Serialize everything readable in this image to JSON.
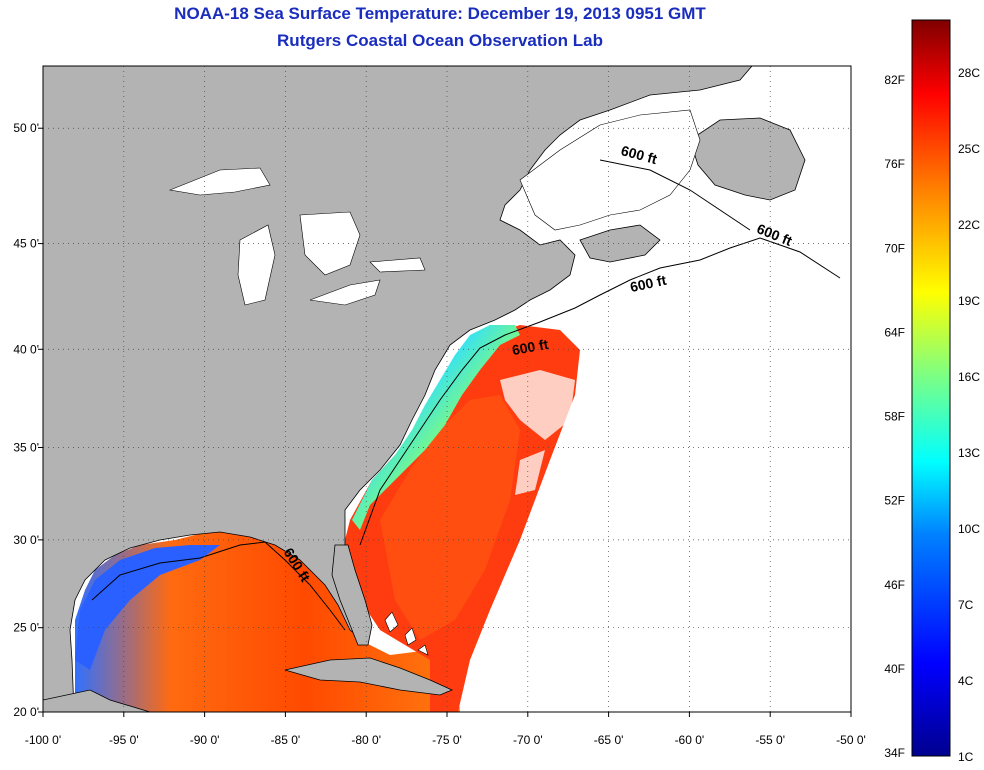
{
  "title": "NOAA-18 Sea Surface Temperature:  December 19, 2013 0951 GMT",
  "subtitle": "Rutgers Coastal Ocean Observation Lab",
  "map": {
    "lon_range": [
      -100,
      -50
    ],
    "lat_range": [
      20,
      52.5
    ],
    "lon_ticks": [
      "-100 0'",
      "-95 0'",
      "-90 0'",
      "-85 0'",
      "-80 0'",
      "-75 0'",
      "-70 0'",
      "-65 0'",
      "-60 0'",
      "-55 0'",
      "-50 0'"
    ],
    "lat_ticks": [
      "20 0'",
      "25 0'",
      "30 0'",
      "35 0'",
      "40 0'",
      "45 0'",
      "50 0'"
    ],
    "land_color": "#b3b3b3",
    "nodata_color": "#ffffff",
    "contour_labels": [
      "600 ft",
      "600 ft",
      "600 ft",
      "600 ft",
      "600 ft"
    ]
  },
  "colorbar": {
    "fahrenheit_labels": [
      "82F",
      "76F",
      "70F",
      "64F",
      "58F",
      "52F",
      "46F",
      "40F",
      "34F"
    ],
    "celsius_labels": [
      "28C",
      "25C",
      "22C",
      "19C",
      "16C",
      "13C",
      "10C",
      "7C",
      "4C",
      "1C"
    ],
    "colors": [
      "#7f0000",
      "#ff0000",
      "#ff8000",
      "#ffff00",
      "#80ff80",
      "#00ffff",
      "#0080ff",
      "#0000ff",
      "#00008f"
    ]
  }
}
